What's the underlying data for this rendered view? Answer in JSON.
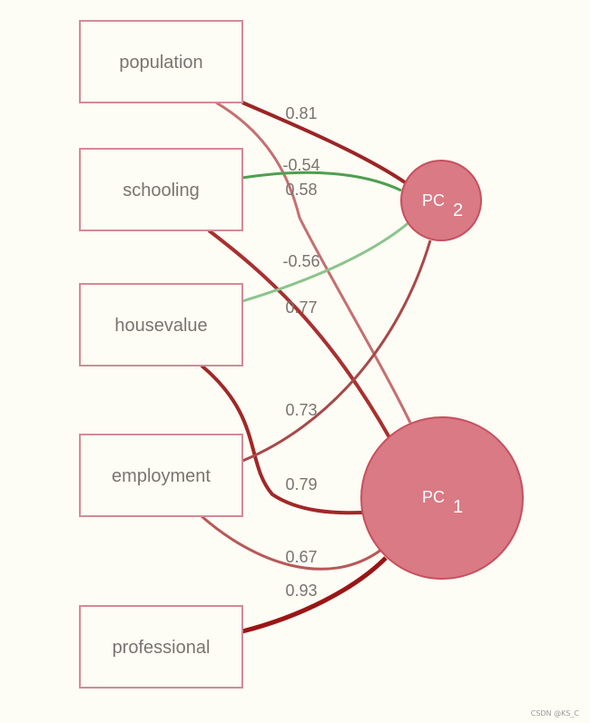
{
  "variables": [
    {
      "key": "population",
      "label": "population"
    },
    {
      "key": "schooling",
      "label": "schooling"
    },
    {
      "key": "housevalue",
      "label": "housevalue"
    },
    {
      "key": "employment",
      "label": "employment"
    },
    {
      "key": "professional",
      "label": "professional"
    }
  ],
  "components": [
    {
      "key": "pc2",
      "label": "PC",
      "sub": "2"
    },
    {
      "key": "pc1",
      "label": "PC",
      "sub": "1"
    }
  ],
  "loadings": [
    {
      "from": "population",
      "to": "pc2",
      "value": "0.81"
    },
    {
      "from": "schooling",
      "to": "pc2",
      "value": "-0.54"
    },
    {
      "from": "population",
      "to": "pc1",
      "value": "0.58"
    },
    {
      "from": "housevalue",
      "to": "pc2",
      "value": "-0.56"
    },
    {
      "from": "schooling",
      "to": "pc1",
      "value": "0.77"
    },
    {
      "from": "employment",
      "to": "pc2",
      "value": "0.73"
    },
    {
      "from": "housevalue",
      "to": "pc1",
      "value": "0.79"
    },
    {
      "from": "employment",
      "to": "pc1",
      "value": "0.67"
    },
    {
      "from": "professional",
      "to": "pc1",
      "value": "0.93"
    }
  ],
  "colors": {
    "positive_strong": "#9b1b1b",
    "positive_mid": "#a83a3a",
    "positive_light": "#c47070",
    "negative_strong": "#4a9a4a",
    "negative_light": "#8cc48c",
    "node_fill": "#d97a84",
    "node_stroke": "#c7505e",
    "box_stroke": "#d48a94"
  },
  "watermark": "CSDN @KS_C"
}
